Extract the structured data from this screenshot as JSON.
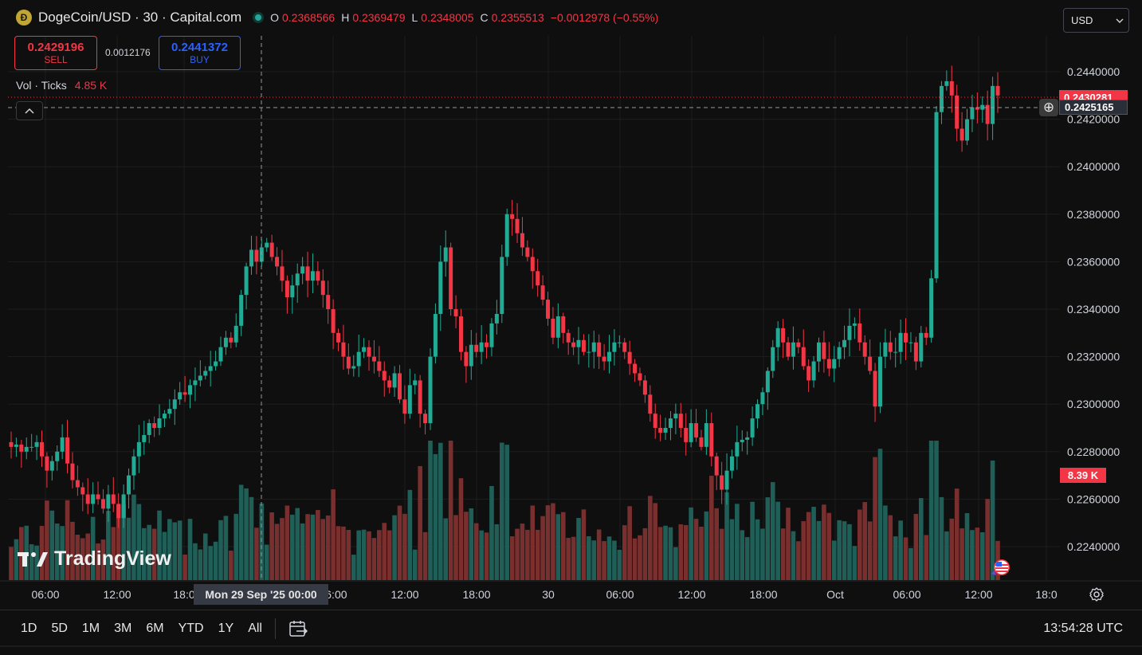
{
  "header": {
    "coin_glyph": "Ð",
    "title": "DogeCoin/USD · 30 · Capital.com",
    "ohlc": [
      {
        "key": "O",
        "value": "0.2368566"
      },
      {
        "key": "H",
        "value": "0.2369479"
      },
      {
        "key": "L",
        "value": "0.2348005"
      },
      {
        "key": "C",
        "value": "0.2355513"
      }
    ],
    "change": "−0.0012978 (−0.55%)"
  },
  "trade": {
    "sell_price": "0.2429196",
    "sell_label": "SELL",
    "spread": "0.0012176",
    "buy_price": "0.2441372",
    "buy_label": "BUY"
  },
  "volume_legend": {
    "label": "Vol · Ticks",
    "value": "4.85 K"
  },
  "currency": {
    "selected": "USD"
  },
  "watermark": {
    "text": "TradingView"
  },
  "price_labels": {
    "last_price": "0.2430281",
    "crosshair_price": "0.2425165",
    "volume_last": "8.39 K"
  },
  "crosshair_time": "Mon 29 Sep '25   00:00",
  "time_axis": [
    {
      "label": "06:00",
      "x": 57
    },
    {
      "label": "12:00",
      "x": 147
    },
    {
      "label": "18:0",
      "x": 231
    },
    {
      "label": "06:00",
      "x": 418
    },
    {
      "label": "12:00",
      "x": 508
    },
    {
      "label": "18:00",
      "x": 598
    },
    {
      "label": "30",
      "x": 688
    },
    {
      "label": "06:00",
      "x": 778
    },
    {
      "label": "12:00",
      "x": 868
    },
    {
      "label": "18:00",
      "x": 958
    },
    {
      "label": "Oct",
      "x": 1048
    },
    {
      "label": "06:00",
      "x": 1138
    },
    {
      "label": "12:00",
      "x": 1228
    },
    {
      "label": "18:0",
      "x": 1313
    }
  ],
  "ranges": [
    "1D",
    "5D",
    "1M",
    "3M",
    "6M",
    "YTD",
    "1Y",
    "All"
  ],
  "clock": "13:54:28 UTC",
  "colors": {
    "up": "#22ab94",
    "down": "#f23645",
    "vol_up": "#1f5f58",
    "vol_down": "#7a2f2f",
    "grid": "#1e1e1e"
  },
  "icons": {
    "settings": "gear-icon",
    "date_range": "calendar-range-icon",
    "add": "plus-icon",
    "collapse": "chevron-up-icon",
    "flag": "us-flag-icon"
  },
  "chart_data": {
    "type": "candlestick",
    "title": "DogeCoin/USD · 30 · Capital.com",
    "interval": "30 min",
    "ylim": [
      0.2225,
      0.2454
    ],
    "y_ticks": [
      "0.2440000",
      "0.2420000",
      "0.2400000",
      "0.2380000",
      "0.2360000",
      "0.2340000",
      "0.2320000",
      "0.2300000",
      "0.2280000",
      "0.2260000",
      "0.2240000"
    ],
    "x_ticks": [
      "06:00",
      "12:00",
      "18:0",
      "06:00",
      "12:00",
      "18:00",
      "30",
      "06:00",
      "12:00",
      "18:00",
      "Oct",
      "06:00",
      "12:00",
      "18:0"
    ],
    "close_series": [
      0.2282,
      0.2283,
      0.228,
      0.2282,
      0.2282,
      0.2284,
      0.2278,
      0.2272,
      0.2276,
      0.228,
      0.2286,
      0.2275,
      0.2268,
      0.2265,
      0.2262,
      0.2258,
      0.2262,
      0.226,
      0.2256,
      0.2262,
      0.2258,
      0.2252,
      0.2262,
      0.227,
      0.2278,
      0.2284,
      0.2287,
      0.2292,
      0.229,
      0.2294,
      0.2296,
      0.2298,
      0.2302,
      0.2305,
      0.2304,
      0.2308,
      0.231,
      0.2312,
      0.2314,
      0.2316,
      0.2318,
      0.2324,
      0.2328,
      0.2326,
      0.2333,
      0.2346,
      0.2358,
      0.2365,
      0.236,
      0.2366,
      0.2368,
      0.2362,
      0.2358,
      0.2352,
      0.2345,
      0.235,
      0.2355,
      0.2358,
      0.2352,
      0.2356,
      0.2352,
      0.2346,
      0.234,
      0.233,
      0.2326,
      0.232,
      0.2315,
      0.2316,
      0.2322,
      0.2324,
      0.232,
      0.2318,
      0.2314,
      0.231,
      0.2307,
      0.2313,
      0.2302,
      0.2296,
      0.2308,
      0.231,
      0.2296,
      0.2292,
      0.232,
      0.2338,
      0.236,
      0.2366,
      0.234,
      0.2337,
      0.2322,
      0.2316,
      0.2325,
      0.2322,
      0.2326,
      0.2324,
      0.2334,
      0.2338,
      0.2362,
      0.238,
      0.2378,
      0.2372,
      0.2366,
      0.2362,
      0.2356,
      0.235,
      0.2344,
      0.2336,
      0.2328,
      0.2337,
      0.233,
      0.2326,
      0.2324,
      0.2327,
      0.2322,
      0.2322,
      0.2326,
      0.232,
      0.2318,
      0.2322,
      0.2326,
      0.2326,
      0.2322,
      0.2317,
      0.2313,
      0.231,
      0.2304,
      0.2296,
      0.229,
      0.2288,
      0.229,
      0.2294,
      0.2296,
      0.229,
      0.2284,
      0.2292,
      0.2286,
      0.2282,
      0.2292,
      0.2278,
      0.227,
      0.2264,
      0.2272,
      0.2278,
      0.2284,
      0.2285,
      0.2286,
      0.2294,
      0.23,
      0.2305,
      0.2314,
      0.2324,
      0.2332,
      0.2326,
      0.232,
      0.2326,
      0.2324,
      0.2316,
      0.231,
      0.2318,
      0.2326,
      0.2319,
      0.2315,
      0.2319,
      0.2324,
      0.2327,
      0.2333,
      0.2334,
      0.2326,
      0.232,
      0.2314,
      0.2299,
      0.232,
      0.2326,
      0.2322,
      0.2322,
      0.233,
      0.2326,
      0.2326,
      0.2318,
      0.233,
      0.2328,
      0.2353,
      0.2423,
      0.2434,
      0.2436,
      0.243,
      0.2416,
      0.2411,
      0.242,
      0.2425,
      0.2424,
      0.2426,
      0.2418,
      0.2434,
      0.243
    ]
  }
}
